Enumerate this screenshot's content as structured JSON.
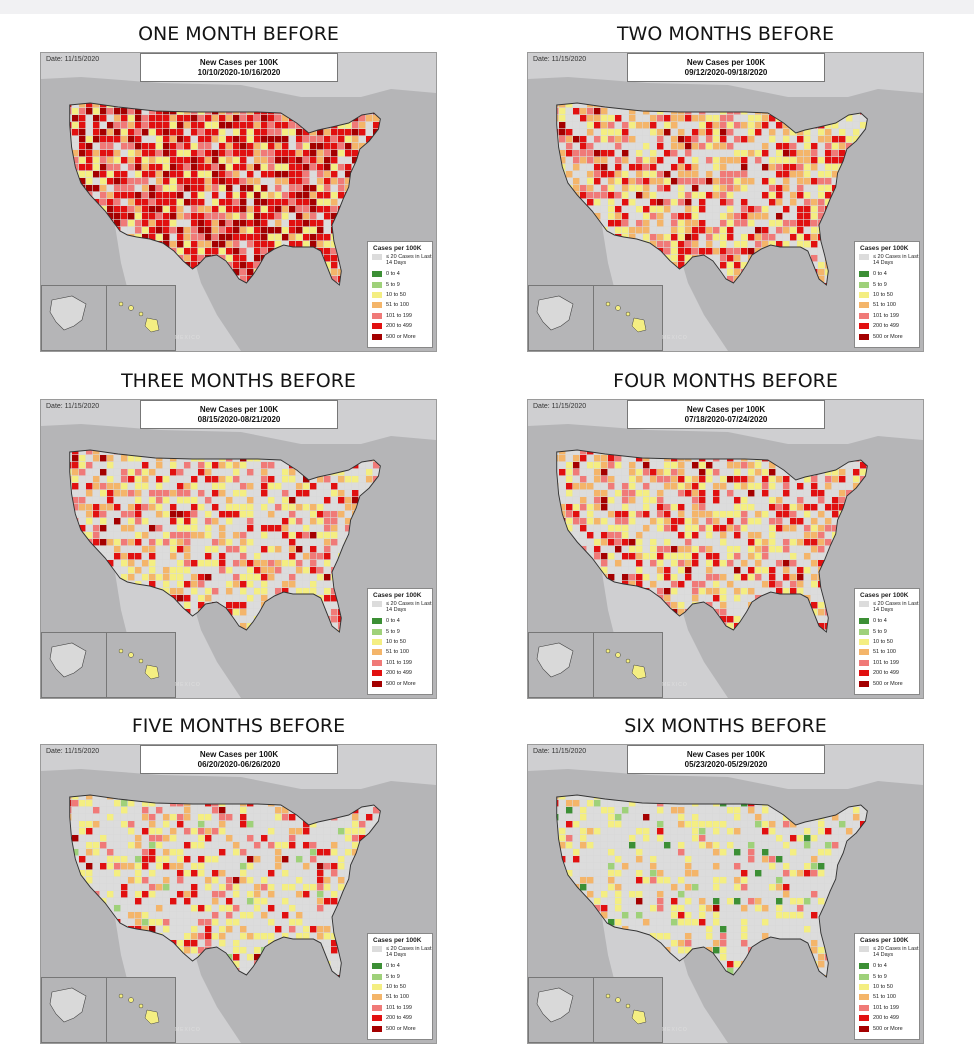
{
  "colors": {
    "na": "#dcdcdc",
    "c0_4": "#3c8f35",
    "c5_9": "#9fd17a",
    "c10_50": "#f4ee82",
    "c51_100": "#f4b56a",
    "c101_199": "#f07a78",
    "c200_499": "#e11010",
    "c500": "#a40000",
    "water": "#b5b5b7",
    "land": "#d9d9d9"
  },
  "panels": [
    {
      "title": "ONE MONTH BEFORE",
      "date": "Date: 11/15/2020",
      "header": "New Cases per 100K",
      "range": "10/10/2020-10/16/2020",
      "mix": {
        "na": 0.1,
        "c10_50": 0.12,
        "c51_100": 0.12,
        "c101_199": 0.16,
        "c200_499": 0.32,
        "c500": 0.18
      }
    },
    {
      "title": "TWO MONTHS BEFORE",
      "date": "Date: 11/15/2020",
      "header": "New Cases per 100K",
      "range": "09/12/2020-09/18/2020",
      "mix": {
        "na": 0.3,
        "c10_50": 0.2,
        "c51_100": 0.17,
        "c101_199": 0.13,
        "c200_499": 0.16,
        "c500": 0.04
      }
    },
    {
      "title": "THREE MONTHS BEFORE",
      "date": "Date: 11/15/2020",
      "header": "New Cases per 100K",
      "range": "08/15/2020-08/21/2020",
      "mix": {
        "na": 0.4,
        "c10_50": 0.2,
        "c51_100": 0.15,
        "c101_199": 0.12,
        "c200_499": 0.11,
        "c500": 0.02
      }
    },
    {
      "title": "FOUR MONTHS BEFORE",
      "date": "Date: 11/15/2020",
      "header": "New Cases per 100K",
      "range": "07/18/2020-07/24/2020",
      "mix": {
        "na": 0.38,
        "c10_50": 0.17,
        "c51_100": 0.15,
        "c101_199": 0.13,
        "c200_499": 0.14,
        "c500": 0.03
      }
    },
    {
      "title": "FIVE MONTHS BEFORE",
      "date": "Date: 11/15/2020",
      "header": "New Cases per 100K",
      "range": "06/20/2020-06/26/2020",
      "mix": {
        "na": 0.55,
        "c5_9": 0.02,
        "c10_50": 0.17,
        "c51_100": 0.1,
        "c101_199": 0.08,
        "c200_499": 0.07,
        "c500": 0.01
      }
    },
    {
      "title": "SIX MONTHS BEFORE",
      "date": "Date: 11/15/2020",
      "header": "New Cases per 100K",
      "range": "05/23/2020-05/29/2020",
      "mix": {
        "na": 0.62,
        "c0_4": 0.02,
        "c5_9": 0.04,
        "c10_50": 0.17,
        "c51_100": 0.07,
        "c101_199": 0.04,
        "c200_499": 0.03,
        "c500": 0.01
      }
    }
  ],
  "legend": {
    "title": "Cases per 100K",
    "items": [
      {
        "label": "≤ 20 Cases in Last 14 Days",
        "color": "#dcdcdc"
      },
      {
        "label": "0 to 4",
        "color": "#3c8f35"
      },
      {
        "label": "5 to 9",
        "color": "#9fd17a"
      },
      {
        "label": "10 to 50",
        "color": "#f4ee82"
      },
      {
        "label": "51 to 100",
        "color": "#f4b56a"
      },
      {
        "label": "101 to 199",
        "color": "#f07a78"
      },
      {
        "label": "200 to 499",
        "color": "#e11010"
      },
      {
        "label": "500 or More",
        "color": "#a40000"
      }
    ]
  },
  "mexico_label": "MEXICO"
}
